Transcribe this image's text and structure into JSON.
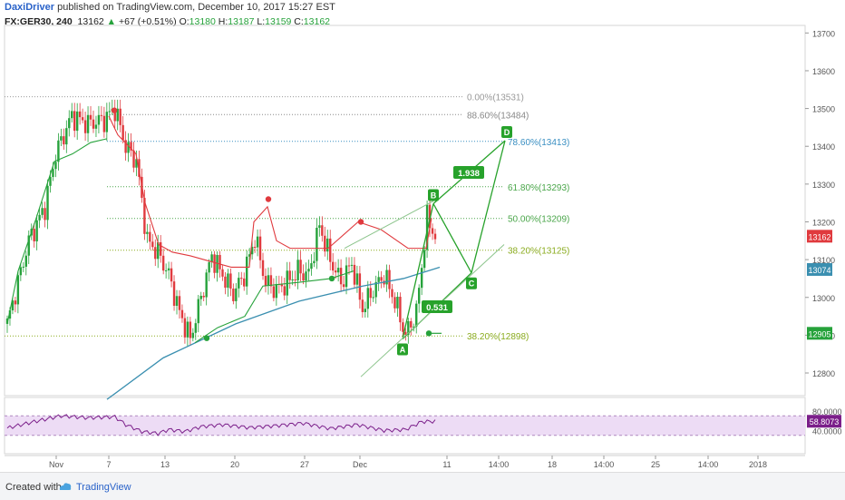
{
  "header": {
    "author": "DaxiDriver",
    "published_text": "published on TradingView.com, December 10, 2017 15:27 EST"
  },
  "ohlc": {
    "symbol": "FX:GER30, 240",
    "last": "13162",
    "change": "+67 (+0.51%)",
    "open_label": "O:",
    "open": "13180",
    "high_label": "H:",
    "high": "13187",
    "low_label": "L:",
    "low": "13159",
    "close_label": "C:",
    "close": "13162"
  },
  "footer": {
    "created_with": "Created with",
    "brand": "TradingView"
  },
  "colors": {
    "up": "#26a23b",
    "down": "#e03a3e",
    "ma": "#3a8fb0",
    "pattern": "#27a22b",
    "rsi": "#7b1f8a",
    "rsi_band": "#eddcf5"
  },
  "chart_data": {
    "type": "candlestick",
    "y_axis": {
      "ticks": [
        "13700",
        "13600",
        "13500",
        "13400",
        "13300",
        "13200",
        "13100",
        "13000",
        "12900",
        "12800"
      ],
      "range": [
        12740,
        13720
      ]
    },
    "x_axis": {
      "ticks": [
        "Nov",
        "7",
        "13",
        "20",
        "27",
        "Dec",
        "11",
        "14:00",
        "18",
        "14:00",
        "25",
        "14:00",
        "2018"
      ]
    },
    "price_labels": [
      {
        "value": 13162,
        "text": "13162",
        "color": "#e03a3e"
      },
      {
        "value": 13074,
        "text": "13074",
        "color": "#3a8fb0"
      },
      {
        "value": 12905,
        "text": "12905",
        "color": "#26a23b"
      }
    ],
    "fib_levels": [
      {
        "label": "0.00%(13531)",
        "value": 13531,
        "color": "#999999"
      },
      {
        "label": "88.60%(13484)",
        "value": 13484,
        "color": "#888888"
      },
      {
        "label": "78.60%(13413)",
        "value": 13413,
        "color": "#3a8fc2"
      },
      {
        "label": "61.80%(13293)",
        "value": 13293,
        "color": "#4aa64a"
      },
      {
        "label": "50.00%(13209)",
        "value": 13209,
        "color": "#4aa64a"
      },
      {
        "label": "38.20%(13125)",
        "value": 13125,
        "color": "#8aab1e"
      },
      {
        "label": "38.20%(12898)",
        "value": 12898,
        "color": "#8aab1e"
      }
    ],
    "pattern_points": [
      {
        "name": "A",
        "value": 12890
      },
      {
        "name": "B",
        "value": 13248
      },
      {
        "name": "C",
        "value": 13065
      },
      {
        "name": "D",
        "value": 13415
      }
    ],
    "pattern_ratios": [
      "1.938",
      "0.531"
    ],
    "rsi": {
      "ticks": [
        "80.0000",
        "40.0000"
      ],
      "current": "58.8073"
    }
  }
}
